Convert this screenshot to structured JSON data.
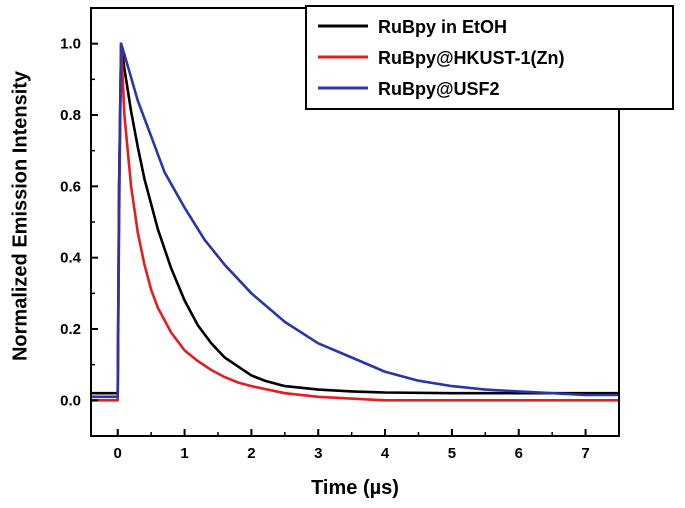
{
  "chart_data": {
    "type": "line",
    "xlabel": "Time (µs)",
    "ylabel": "Normalized Emission Intensity",
    "xlim": [
      -0.4,
      7.5
    ],
    "ylim": [
      -0.1,
      1.1
    ],
    "xticks": [
      "0",
      "1",
      "2",
      "3",
      "4",
      "5",
      "6",
      "7"
    ],
    "yticks": [
      "0.0",
      "0.2",
      "0.4",
      "0.6",
      "0.8",
      "1.0"
    ],
    "grid": false,
    "legend_position": "top-right",
    "series": [
      {
        "name": "RuBpy in EtOH",
        "color": "#000000",
        "x": [
          -0.4,
          0.0,
          0.02,
          0.05,
          0.1,
          0.2,
          0.3,
          0.4,
          0.5,
          0.6,
          0.8,
          1.0,
          1.2,
          1.4,
          1.6,
          1.8,
          2.0,
          2.2,
          2.5,
          3.0,
          3.5,
          4.0,
          5.0,
          6.0,
          7.0,
          7.5
        ],
        "y": [
          0.02,
          0.02,
          0.6,
          1.0,
          0.93,
          0.81,
          0.71,
          0.62,
          0.55,
          0.48,
          0.37,
          0.28,
          0.21,
          0.16,
          0.12,
          0.095,
          0.07,
          0.055,
          0.04,
          0.03,
          0.025,
          0.022,
          0.02,
          0.02,
          0.02,
          0.02
        ]
      },
      {
        "name": "RuBpy@HKUST-1(Zn)",
        "color": "#e02020",
        "x": [
          -0.4,
          0.0,
          0.02,
          0.05,
          0.1,
          0.2,
          0.3,
          0.4,
          0.5,
          0.6,
          0.8,
          1.0,
          1.2,
          1.4,
          1.6,
          1.8,
          2.0,
          2.5,
          3.0,
          4.0,
          5.0,
          6.0,
          7.0,
          7.5
        ],
        "y": [
          0.0,
          0.0,
          0.5,
          1.0,
          0.8,
          0.6,
          0.47,
          0.38,
          0.31,
          0.26,
          0.19,
          0.14,
          0.11,
          0.085,
          0.065,
          0.05,
          0.04,
          0.02,
          0.01,
          0.0,
          0.0,
          0.0,
          0.0,
          0.0
        ]
      },
      {
        "name": "RuBpy@USF2",
        "color": "#2a35a8",
        "x": [
          -0.4,
          0.0,
          0.02,
          0.05,
          0.1,
          0.3,
          0.5,
          0.7,
          1.0,
          1.3,
          1.6,
          2.0,
          2.5,
          3.0,
          3.5,
          4.0,
          4.5,
          5.0,
          5.5,
          6.0,
          6.5,
          7.0,
          7.5
        ],
        "y": [
          0.01,
          0.01,
          0.6,
          1.0,
          0.97,
          0.84,
          0.74,
          0.64,
          0.54,
          0.45,
          0.38,
          0.3,
          0.22,
          0.16,
          0.12,
          0.08,
          0.055,
          0.04,
          0.03,
          0.025,
          0.02,
          0.015,
          0.015
        ]
      }
    ]
  }
}
